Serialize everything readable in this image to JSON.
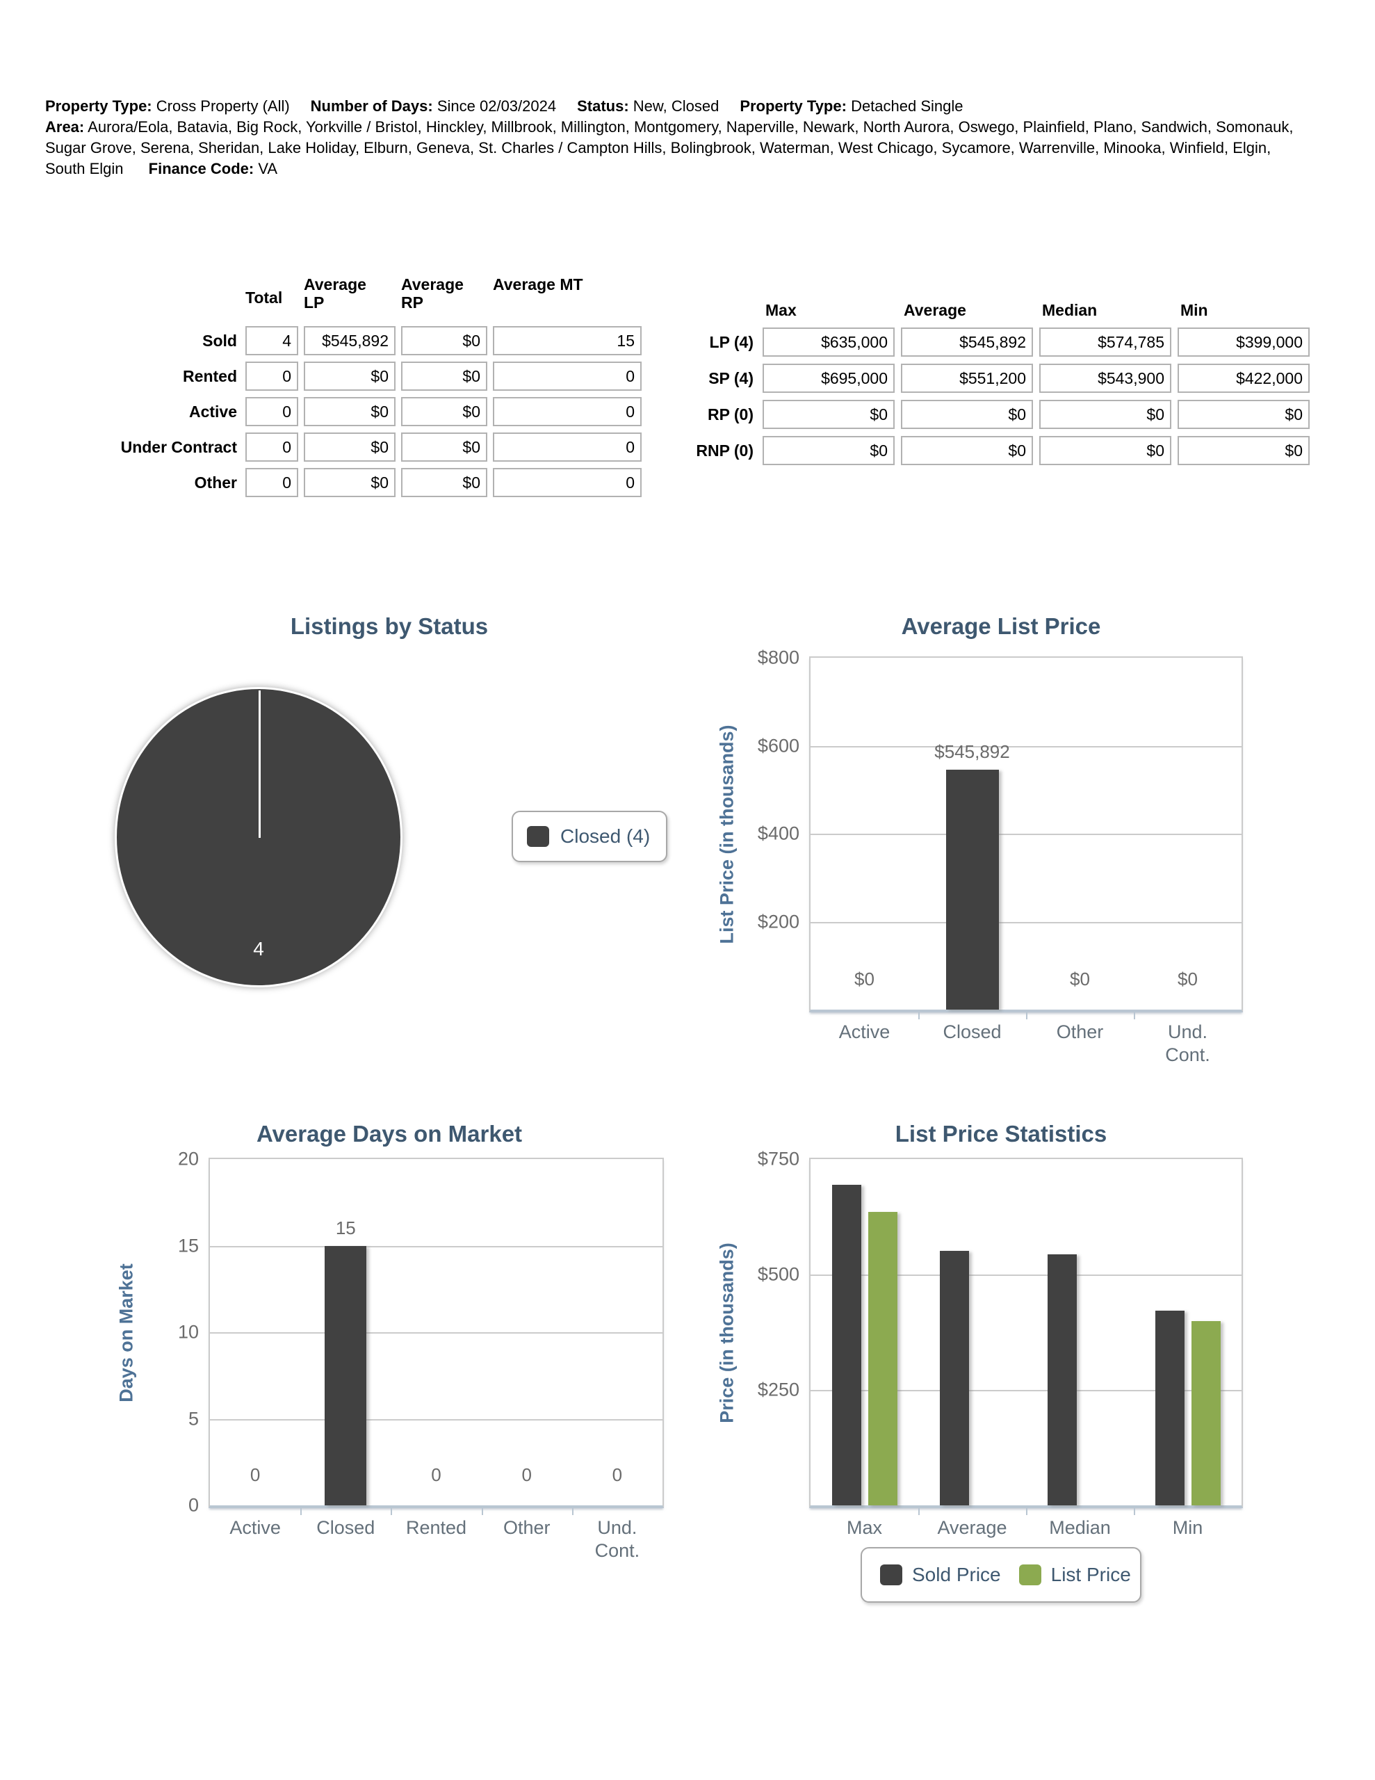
{
  "report": {
    "filters": [
      {
        "label": "Property Type:",
        "value": "Cross Property (All)"
      },
      {
        "label": "Number of Days:",
        "value": "Since 02/03/2024"
      },
      {
        "label": "Status:",
        "value": "New, Closed"
      },
      {
        "label": "Property Type:",
        "value": "Detached Single"
      },
      {
        "label": "Area:",
        "value": "Aurora/Eola, Batavia, Big Rock, Yorkville / Bristol, Hinckley, Millbrook, Millington, Montgomery, Naperville, Newark, North Aurora, Oswego, Plainfield, Plano, Sandwich, Somonauk, Sugar Grove, Serena, Sheridan, Lake Holiday, Elburn, Geneva, St. Charles / Campton Hills, Bolingbrook, Waterman, West Chicago, Sycamore, Warrenville, Minooka, Winfield, Elgin, South Elgin"
      },
      {
        "label": "Finance Code:",
        "value": "VA"
      }
    ]
  },
  "status_table": {
    "headers": [
      "Total",
      "Average LP",
      "Average RP",
      "Average MT"
    ],
    "rows": [
      {
        "label": "Sold",
        "values": [
          "4",
          "$545,892",
          "$0",
          "15"
        ]
      },
      {
        "label": "Rented",
        "values": [
          "0",
          "$0",
          "$0",
          "0"
        ]
      },
      {
        "label": "Active",
        "values": [
          "0",
          "$0",
          "$0",
          "0"
        ]
      },
      {
        "label": "Under Contract",
        "values": [
          "0",
          "$0",
          "$0",
          "0"
        ]
      },
      {
        "label": "Other",
        "values": [
          "0",
          "$0",
          "$0",
          "0"
        ]
      }
    ]
  },
  "price_table": {
    "headers": [
      "Max",
      "Average",
      "Median",
      "Min"
    ],
    "rows": [
      {
        "label": "LP (4)",
        "values": [
          "$635,000",
          "$545,892",
          "$574,785",
          "$399,000"
        ]
      },
      {
        "label": "SP (4)",
        "values": [
          "$695,000",
          "$551,200",
          "$543,900",
          "$422,000"
        ]
      },
      {
        "label": "RP (0)",
        "values": [
          "$0",
          "$0",
          "$0",
          "$0"
        ]
      },
      {
        "label": "RNP (0)",
        "values": [
          "$0",
          "$0",
          "$0",
          "$0"
        ]
      }
    ]
  },
  "chart_data": [
    {
      "type": "pie",
      "title": "Listings by Status",
      "slices": [
        {
          "label": "Closed",
          "value": 4,
          "color": "#414141"
        }
      ],
      "data_label": "4",
      "legend": [
        {
          "label": "Closed (4)",
          "color": "#414141"
        }
      ],
      "legend_position": "right"
    },
    {
      "type": "bar",
      "title": "Average List Price",
      "xlabel": "",
      "ylabel": "List Price (in thousands)",
      "categories": [
        "Active",
        "Closed",
        "Other",
        "Und. Cont."
      ],
      "values": [
        0,
        545.892,
        0,
        0
      ],
      "data_labels": [
        "$0",
        "$545,892",
        "$0",
        "$0"
      ],
      "ylim": [
        0,
        800
      ],
      "yticks": [
        "$800",
        "$600",
        "$400",
        "$200"
      ],
      "bar_color": "#414141",
      "grid": true,
      "legend_position": "none"
    },
    {
      "type": "bar",
      "title": "Average Days on Market",
      "xlabel": "",
      "ylabel": "Days on Market",
      "categories": [
        "Active",
        "Closed",
        "Rented",
        "Other",
        "Und. Cont."
      ],
      "values": [
        0,
        15,
        0,
        0,
        0
      ],
      "data_labels": [
        "0",
        "15",
        "0",
        "0",
        "0"
      ],
      "ylim": [
        0,
        20
      ],
      "yticks": [
        "20",
        "15",
        "10",
        "5",
        "0"
      ],
      "bar_color": "#414141",
      "grid": true,
      "legend_position": "none"
    },
    {
      "type": "bar",
      "title": "List Price Statistics",
      "xlabel": "",
      "ylabel": "Price (in thousands)",
      "categories": [
        "Max",
        "Average",
        "Median",
        "Min"
      ],
      "series": [
        {
          "name": "Sold Price",
          "color": "#414141",
          "values": [
            695,
            551.2,
            543.9,
            422
          ]
        },
        {
          "name": "List Price",
          "color": "#8caa50",
          "values": [
            635,
            null,
            null,
            399
          ]
        }
      ],
      "ylim": [
        0,
        750
      ],
      "yticks": [
        "$750",
        "$500",
        "$250"
      ],
      "grid": true,
      "legend_position": "bottom"
    }
  ],
  "colors": {
    "bar_dark": "#414141",
    "bar_green": "#8caa50",
    "title_text": "#3e5870",
    "axis_label_text": "#4e7296",
    "tick_text": "#6b6b6b",
    "axis_line": "#b9c6d2",
    "grid_line": "#cbcbcb"
  }
}
